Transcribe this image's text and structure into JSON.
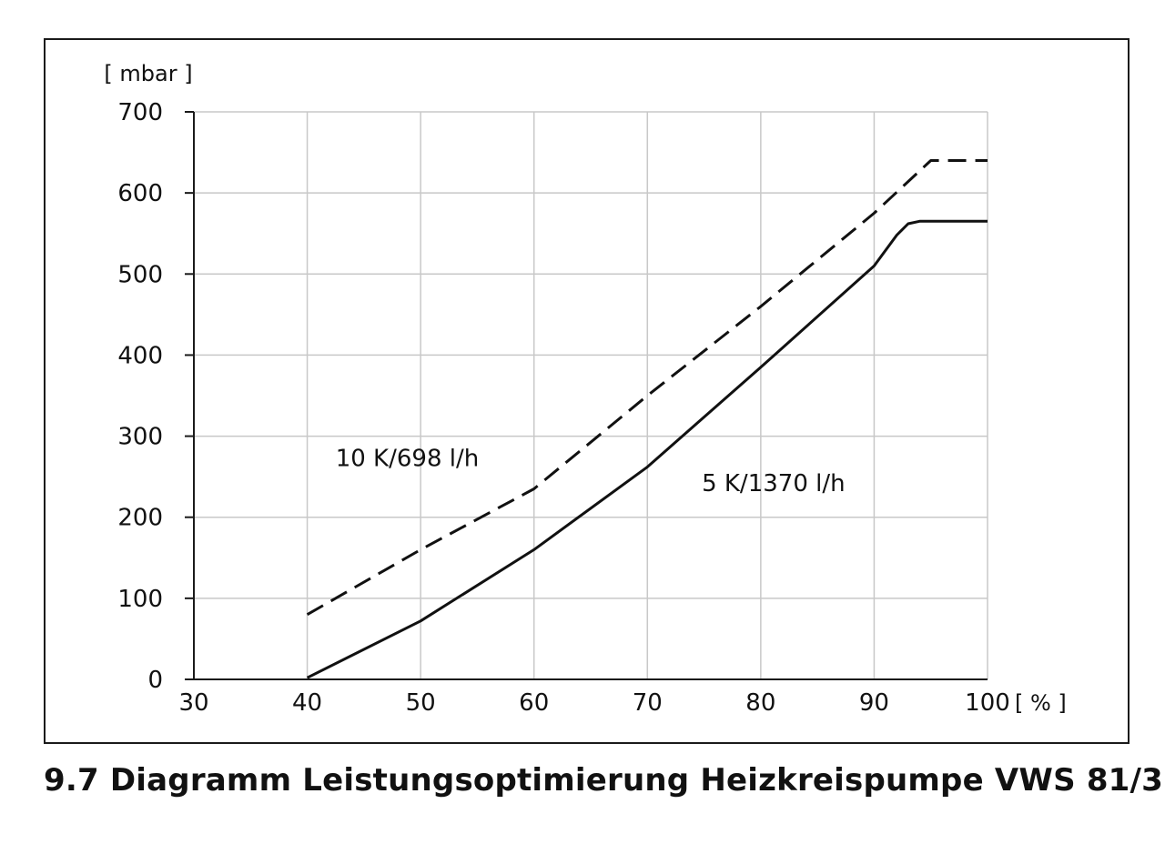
{
  "caption": "9.7 Diagramm Leistungsoptimierung Heizkreispumpe VWS 81/3",
  "chart_data": {
    "type": "line",
    "title": "",
    "ylabel": "[ mbar ]",
    "xlabel": "[ % ]",
    "xlim": [
      30,
      100
    ],
    "ylim": [
      0,
      700
    ],
    "x_ticks": [
      "30",
      "40",
      "50",
      "60",
      "70",
      "80",
      "90",
      "100"
    ],
    "y_ticks": [
      "0",
      "100",
      "200",
      "300",
      "400",
      "500",
      "600",
      "700"
    ],
    "grid": true,
    "colors": {
      "line": "#111111",
      "grid": "#c8c8c8",
      "axis": "#1a1a1a"
    },
    "series": [
      {
        "name": "10 K/698 l/h",
        "style": "dashed",
        "x": [
          40,
          50,
          60,
          70,
          80,
          90,
          95,
          100
        ],
        "y": [
          80,
          160,
          235,
          350,
          460,
          575,
          640,
          640
        ]
      },
      {
        "name": "5 K/1370 l/h",
        "style": "solid",
        "x": [
          40,
          50,
          60,
          70,
          80,
          90,
          92,
          93,
          94,
          100
        ],
        "y": [
          2,
          72,
          160,
          262,
          385,
          510,
          548,
          562,
          565,
          565
        ]
      }
    ]
  }
}
